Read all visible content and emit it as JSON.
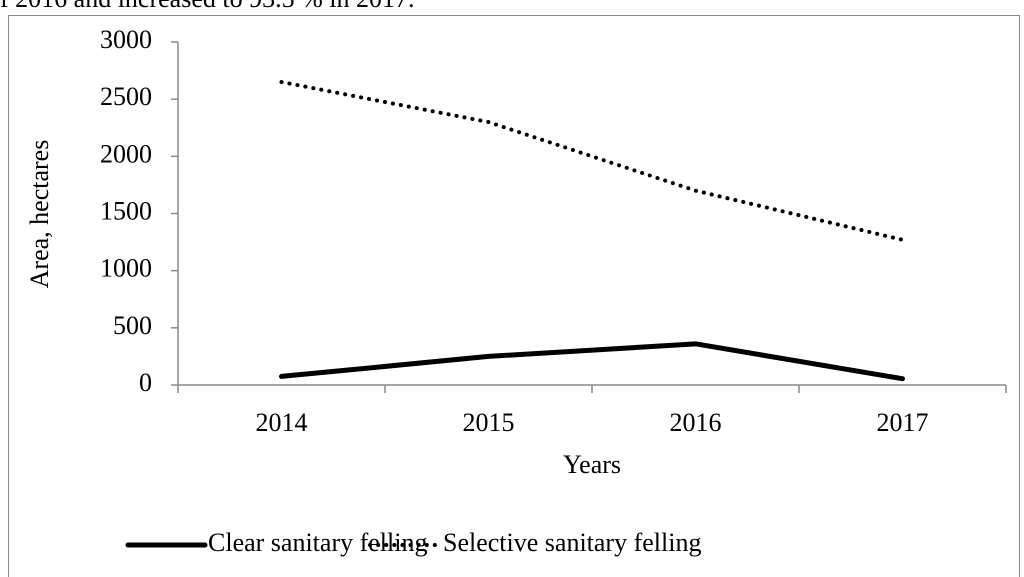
{
  "caption_fragment": "f 2016 and increased to 93.5 % in 2017.",
  "chart_data": {
    "type": "line",
    "y_label": "Area, hectares",
    "x_label": "Years",
    "categories": [
      "2014",
      "2015",
      "2016",
      "2017"
    ],
    "series": [
      {
        "name": "Clear sanitary felling",
        "color": "#000000",
        "style": "solid",
        "values": [
          75,
          250,
          360,
          55
        ]
      },
      {
        "name": "Selective sanitary felling",
        "color": "#000000",
        "style": "dotted",
        "values": [
          2650,
          2300,
          1700,
          1270
        ]
      }
    ],
    "ylim": [
      0,
      3000
    ],
    "yticks": [
      0,
      500,
      1000,
      1500,
      2000,
      2500,
      3000
    ],
    "grid": false,
    "legend": "bottom"
  }
}
